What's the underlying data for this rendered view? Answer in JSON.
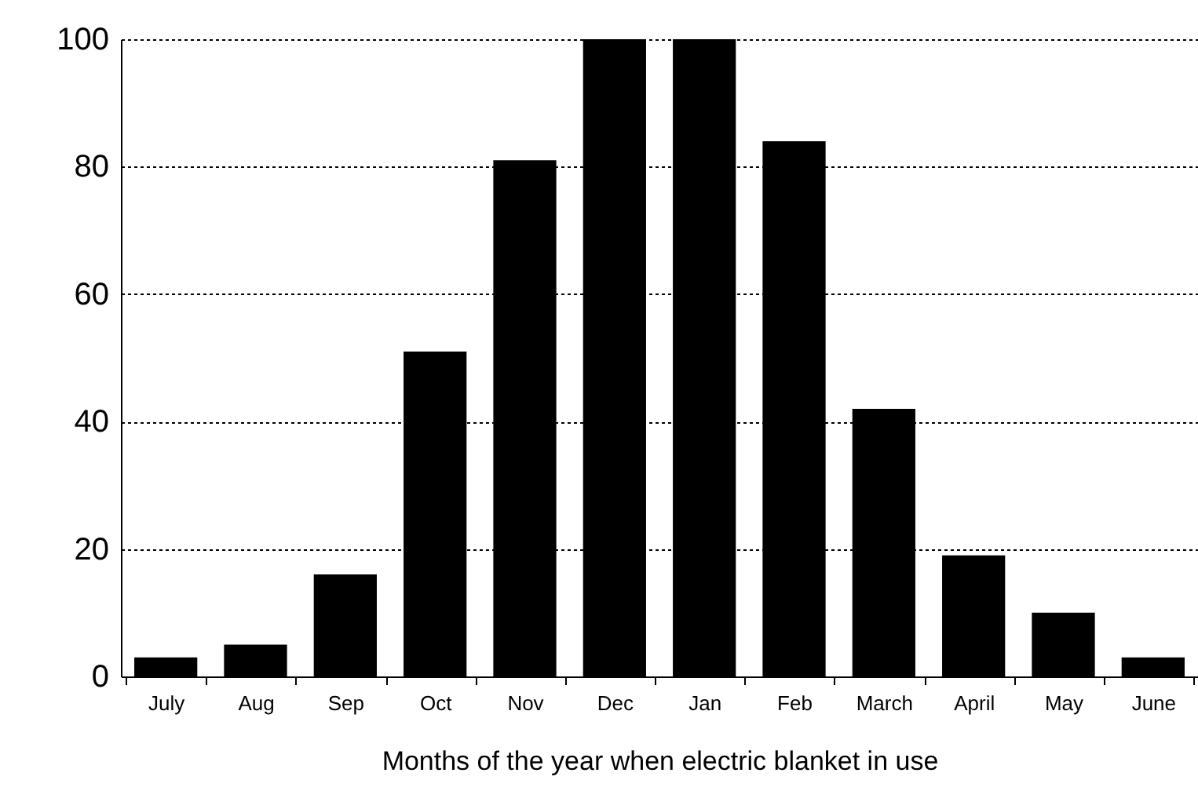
{
  "chart_data": {
    "type": "bar",
    "xlabel": "Months of the year when electric blanket in use",
    "categories": [
      "July",
      "Aug",
      "Sep",
      "Oct",
      "Nov",
      "Dec",
      "Jan",
      "Feb",
      "March",
      "April",
      "May",
      "June"
    ],
    "values": [
      3,
      5,
      16,
      51,
      81,
      100,
      100,
      84,
      42,
      19,
      10,
      3
    ],
    "color": "#000000",
    "ylim": [
      0,
      100
    ],
    "yticks": [
      0,
      20,
      40,
      60,
      80,
      100
    ],
    "grid": "y"
  }
}
